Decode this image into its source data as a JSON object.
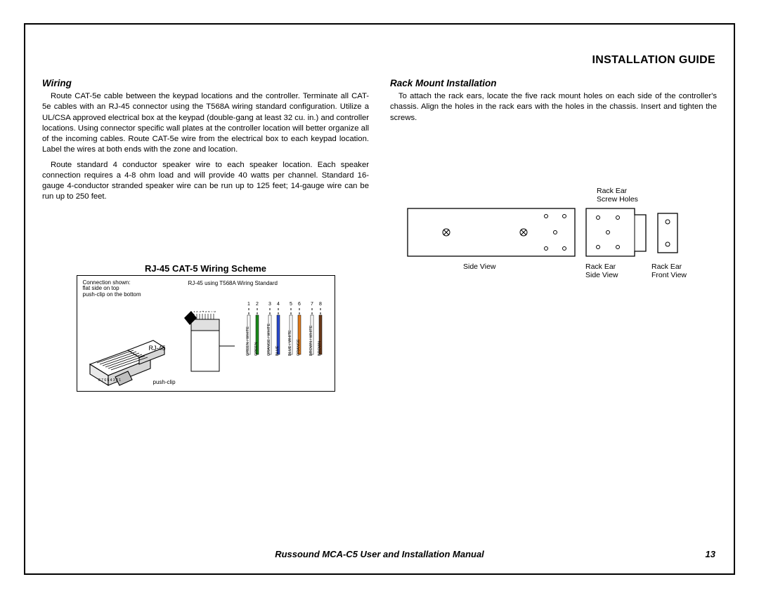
{
  "header": {
    "title": "INSTALLATION GUIDE"
  },
  "left": {
    "heading": "Wiring",
    "p1": "Route CAT-5e cable between the keypad locations and the controller. Terminate all CAT-5e cables with an RJ-45 connector using the T568A wiring standard configuration. Utilize a UL/CSA approved electrical box at the keypad (double-gang at least 32 cu. in.) and controller locations. Using connector specific wall plates at the controller location will better organize all of the incoming cables. Route CAT-5e wire from the electrical box to each keypad location. Label the wires at both ends with the zone and location.",
    "p2": "Route standard 4 conductor speaker wire to each speaker location. Each speaker connection requires a 4-8 ohm load and will provide 40 watts per channel. Standard 16-gauge 4-conductor stranded speaker wire can be run up to 125 feet; 14-gauge wire can be run up to 250 feet.",
    "scheme_title": "RJ-45 CAT-5 Wiring Scheme",
    "conn_note_1": "Connection shown:",
    "conn_note_2": "flat side on top",
    "conn_note_3": "push-clip on the bottom",
    "standard_note": "RJ-45 using T568A  Wiring Standard",
    "rj45_label": "RJ-45",
    "pushclip_label": "push-clip",
    "pins_top": "1 2 3 4 5 6 7 8",
    "rj45_pin_string": "8 7 6 5 4 3 2 1",
    "wires": [
      {
        "num": "1",
        "name": "GREEN / WHITE",
        "color": "#ffffff",
        "stripe": "#1a8a1a"
      },
      {
        "num": "2",
        "name": "GREEN",
        "color": "#1a8a1a",
        "stripe": null
      },
      {
        "num": "3",
        "name": "ORANGE / WHITE",
        "color": "#ffffff",
        "stripe": "#e07a1a"
      },
      {
        "num": "4",
        "name": "BLUE",
        "color": "#2a4ad0",
        "stripe": null
      },
      {
        "num": "5",
        "name": "BLUE / WHITE",
        "color": "#ffffff",
        "stripe": "#2a4ad0"
      },
      {
        "num": "6",
        "name": "ORANGE",
        "color": "#e07a1a",
        "stripe": null
      },
      {
        "num": "7",
        "name": "BROWN / WHITE",
        "color": "#ffffff",
        "stripe": "#6b3a1a"
      },
      {
        "num": "8",
        "name": "BROWN",
        "color": "#6b3a1a",
        "stripe": null
      }
    ]
  },
  "right": {
    "heading": "Rack Mount Installation",
    "p1": "To attach the rack ears, locate the five rack mount holes on each side of the controller's chassis. Align the holes in the rack ears with the holes in the chassis. Insert and tighten the screws.",
    "label_screw": "Rack Ear\nScrew Holes",
    "cap_side": "Side View",
    "cap_ear_side": "Rack Ear\nSide View",
    "cap_ear_front": "Rack Ear\nFront View"
  },
  "footer": {
    "title": "Russound MCA-C5 User and Installation Manual",
    "page": "13"
  }
}
